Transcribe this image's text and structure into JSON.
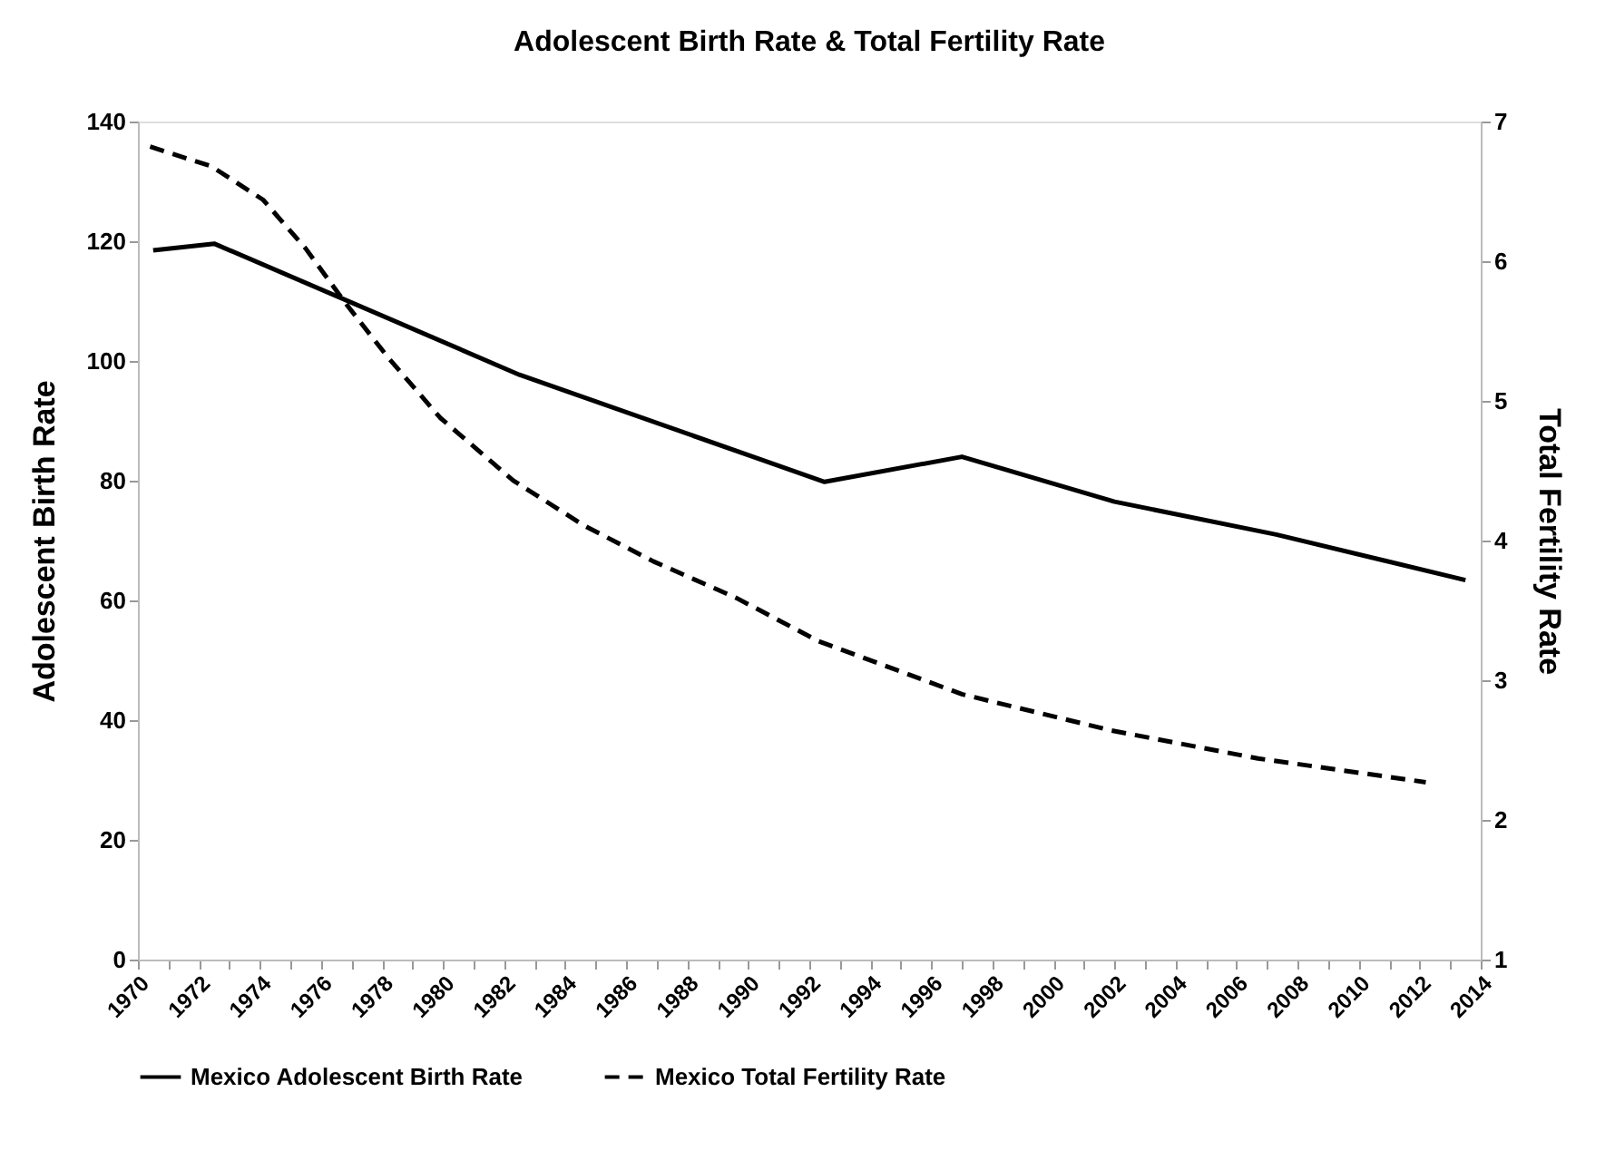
{
  "chart_data": {
    "type": "line",
    "title": "Adolescent Birth Rate & Total Fertility Rate",
    "ylabel": "Adolescent Birth Rate",
    "y2label": "Total Fertility Rate",
    "xlim": [
      1970,
      2014
    ],
    "xticks": [
      1970,
      {
        "value": 1971,
        "label": null
      },
      1972,
      {
        "value": 1973,
        "label": null
      },
      1974,
      {
        "value": 1975,
        "label": null
      },
      1976,
      {
        "value": 1977,
        "label": null
      },
      1978,
      {
        "value": 1979,
        "label": null
      },
      1980,
      {
        "value": 1981,
        "label": null
      },
      1982,
      {
        "value": 1983,
        "label": null
      },
      1984,
      {
        "value": 1985,
        "label": null
      },
      1986,
      {
        "value": 1987,
        "label": null
      },
      1988,
      {
        "value": 1989,
        "label": null
      },
      1990,
      {
        "value": 1991,
        "label": null
      },
      1992,
      {
        "value": 1993,
        "label": null
      },
      1994,
      {
        "value": 1995,
        "label": null
      },
      1996,
      {
        "value": 1997,
        "label": null
      },
      1998,
      {
        "value": 1999,
        "label": null
      },
      2000,
      {
        "value": 2001,
        "label": null
      },
      2002,
      {
        "value": 2003,
        "label": null
      },
      2004,
      {
        "value": 2005,
        "label": null
      },
      2006,
      {
        "value": 2007,
        "label": null
      },
      2008,
      {
        "value": 2009,
        "label": null
      },
      2010,
      {
        "value": 2011,
        "label": null
      },
      2012,
      {
        "value": 2013,
        "label": null
      },
      2014
    ],
    "ylim": [
      0,
      140
    ],
    "yticks": [
      0,
      20,
      40,
      60,
      80,
      100,
      120,
      140
    ],
    "y2lim": [
      1,
      7
    ],
    "y2ticks": [
      1,
      2,
      3,
      4,
      5,
      6,
      7
    ],
    "grid": false,
    "legend": "bottom",
    "series": [
      {
        "name": "Mexico Adolescent Birth Rate",
        "color": "#000000",
        "line_style": "solid",
        "x": [
          1970.5,
          1972.5,
          1982.5,
          1992.5,
          1997,
          2002,
          2007.3,
          2013.5
        ],
        "values": [
          118.5,
          119.6,
          97.7,
          79.8,
          84.0,
          76.5,
          71.0,
          63.4
        ]
      },
      {
        "name": "Mexico Total Fertility Rate",
        "color": "#000000",
        "line_style": "dashed",
        "axis": "y2",
        "x": [
          1970.4,
          1972.4,
          1974.1,
          1975.5,
          1976.8,
          1978.2,
          1979.9,
          1982.3,
          1984.6,
          1986.9,
          1989.6,
          1992.3,
          1997.0,
          2001.9,
          2006.7,
          2012.2
        ],
        "values": [
          6.82,
          6.68,
          6.44,
          6.09,
          5.7,
          5.31,
          4.88,
          4.43,
          4.11,
          3.85,
          3.59,
          3.28,
          2.9,
          2.64,
          2.44,
          2.27
        ]
      }
    ]
  }
}
